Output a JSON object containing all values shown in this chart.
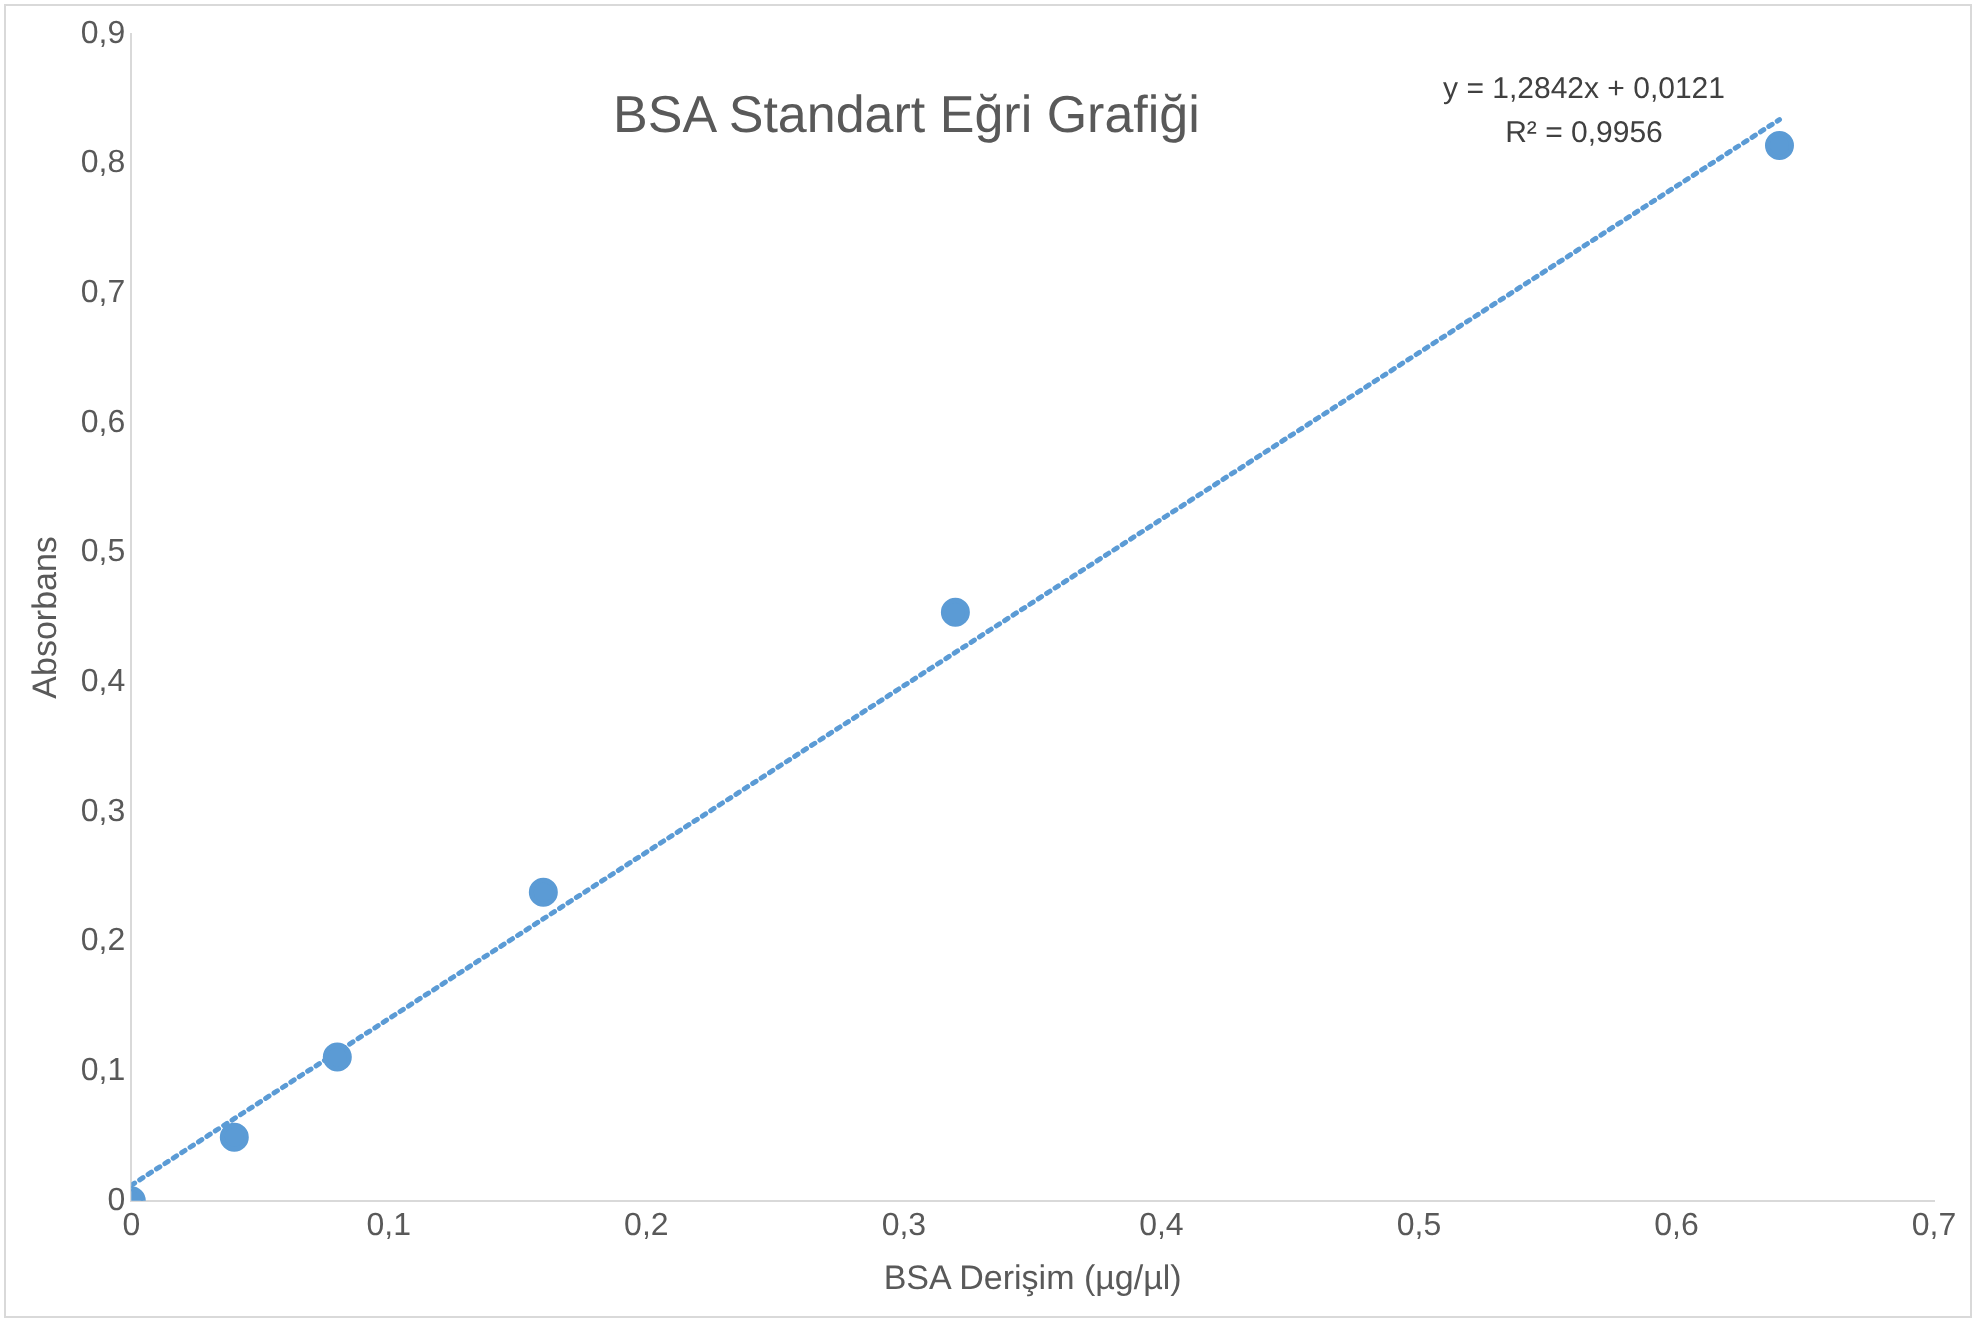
{
  "chart_data": {
    "type": "scatter",
    "title": "BSA Standart Eğri Grafiği",
    "xlabel": "BSA Derişim (µg/µl)",
    "ylabel": "Absorbans",
    "x": [
      0,
      0.04,
      0.08,
      0.16,
      0.32,
      0.64
    ],
    "series": [
      {
        "color": "#5b9bd5",
        "marker": "circle",
        "values": [
          0,
          0.049,
          0.111,
          0.238,
          0.454,
          0.814
        ]
      },
      {
        "type": "line",
        "color": "#5b9bd5",
        "line_style": "dotted",
        "marker": "none",
        "x": [
          0,
          0.64
        ],
        "values": [
          0.012,
          0.834
        ]
      }
    ],
    "annotations": [
      "y = 1,2842x + 0,0121",
      "R² = 0,9956"
    ],
    "xlim": [
      0,
      0.7
    ],
    "ylim": [
      0,
      0.9
    ],
    "xticks": [
      0,
      {
        "value": 0.1,
        "label": "0,1"
      },
      {
        "value": 0.2,
        "label": "0,2"
      },
      {
        "value": 0.3,
        "label": "0,3"
      },
      {
        "value": 0.4,
        "label": "0,4"
      },
      {
        "value": 0.5,
        "label": "0,5"
      },
      {
        "value": 0.6,
        "label": "0,6"
      },
      {
        "value": 0.7,
        "label": "0,7"
      }
    ],
    "yticks": [
      0,
      {
        "value": 0.1,
        "label": "0,1"
      },
      {
        "value": 0.2,
        "label": "0,2"
      },
      {
        "value": 0.3,
        "label": "0,3"
      },
      {
        "value": 0.4,
        "label": "0,4"
      },
      {
        "value": 0.5,
        "label": "0,5"
      },
      {
        "value": 0.6,
        "label": "0,6"
      },
      {
        "value": 0.7,
        "label": "0,7"
      },
      {
        "value": 0.8,
        "label": "0,8"
      },
      {
        "value": 0.9,
        "label": "0,9"
      }
    ],
    "grid": false,
    "legend": false
  }
}
